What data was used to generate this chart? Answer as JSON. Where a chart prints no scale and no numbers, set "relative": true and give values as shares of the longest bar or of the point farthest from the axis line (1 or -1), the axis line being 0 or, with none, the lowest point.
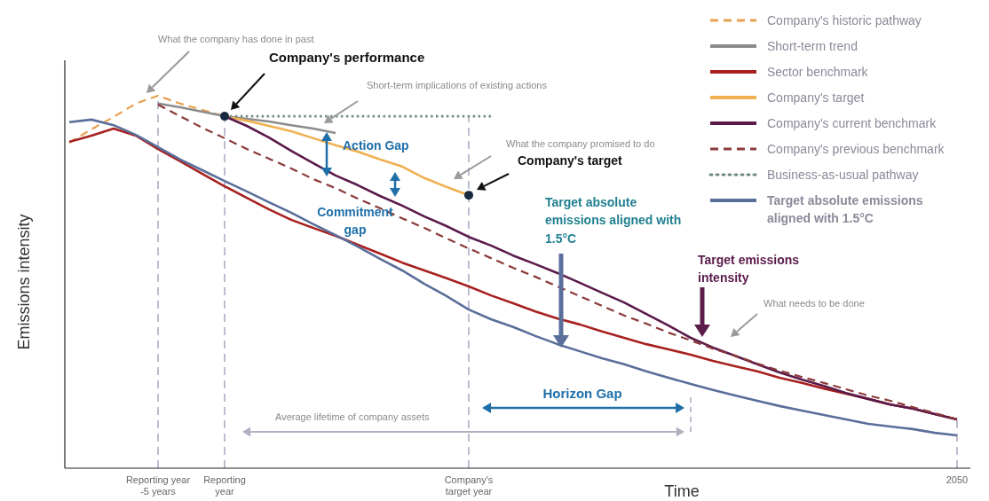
{
  "chart_data": {
    "type": "line",
    "relative": true,
    "xlabel": "Time",
    "ylabel": "Emissions intensity",
    "categories": [
      null,
      null,
      null,
      null,
      "Reporting year -5 years",
      null,
      null,
      "Reporting year",
      null,
      null,
      null,
      null,
      null,
      null,
      null,
      null,
      null,
      null,
      "Company's target year",
      null,
      null,
      null,
      null,
      null,
      null,
      null,
      null,
      null,
      null,
      null,
      null,
      null,
      null,
      null,
      null,
      null,
      null,
      null,
      null,
      null,
      "2050"
    ],
    "tick_labels": "x",
    "legend": "top right",
    "marker": "none",
    "series": [
      {
        "name": "Company's historic pathway",
        "color": "#e8a050",
        "line_style": "dashed",
        "values": [
          0.874,
          0.91,
          0.943,
          0.979,
          1,
          0.979,
          0.962,
          0.945,
          null,
          null,
          null,
          null,
          null,
          null,
          null,
          null,
          null,
          null,
          null,
          null,
          null,
          null,
          null,
          null,
          null,
          null,
          null,
          null,
          null,
          null,
          null,
          null,
          null,
          null,
          null,
          null,
          null,
          null,
          null,
          null,
          null
        ]
      },
      {
        "name": "Short-term trend",
        "color": "#8c8c8c",
        "line_style": "solid",
        "values": [
          null,
          null,
          null,
          null,
          0.979,
          0.969,
          0.957,
          0.945,
          0.938,
          0.931,
          0.921,
          0.912,
          0.9,
          null,
          null,
          null,
          null,
          null,
          null,
          null,
          null,
          null,
          null,
          null,
          null,
          null,
          null,
          null,
          null,
          null,
          null,
          null,
          null,
          null,
          null,
          null,
          null,
          null,
          null,
          null,
          null
        ]
      },
      {
        "name": "Sector benchmark",
        "color": "#a82020",
        "line_style": "solid",
        "values": [
          0.876,
          0.893,
          0.912,
          0.893,
          0.857,
          0.824,
          0.79,
          0.757,
          0.726,
          0.695,
          0.667,
          0.645,
          0.624,
          0.6,
          0.576,
          0.552,
          0.531,
          0.51,
          0.488,
          0.464,
          0.443,
          0.421,
          0.402,
          0.386,
          0.367,
          0.35,
          0.333,
          0.319,
          0.305,
          0.288,
          0.274,
          0.26,
          0.243,
          0.229,
          0.214,
          0.2,
          0.186,
          0.171,
          0.16,
          0.145,
          0.131
        ]
      },
      {
        "name": "Company's target",
        "color": "#f0b050",
        "line_style": "solid",
        "values": [
          null,
          null,
          null,
          null,
          null,
          null,
          null,
          0.945,
          0.933,
          0.919,
          0.905,
          0.886,
          0.867,
          0.85,
          0.829,
          0.81,
          0.779,
          0.755,
          0.733,
          null,
          null,
          null,
          null,
          null,
          null,
          null,
          null,
          null,
          null,
          null,
          null,
          null,
          null,
          null,
          null,
          null,
          null,
          null,
          null,
          null,
          null
        ]
      },
      {
        "name": "Company's current benchmark",
        "color": "#5a1a4a",
        "line_style": "solid",
        "values": [
          null,
          null,
          null,
          null,
          null,
          null,
          null,
          0.945,
          0.919,
          0.888,
          0.852,
          0.819,
          0.786,
          0.76,
          0.731,
          0.705,
          0.676,
          0.65,
          0.621,
          0.598,
          0.571,
          0.548,
          0.524,
          0.498,
          0.471,
          0.445,
          0.414,
          0.383,
          0.35,
          0.324,
          0.302,
          0.279,
          0.257,
          0.238,
          0.221,
          0.202,
          0.186,
          0.171,
          0.16,
          0.145,
          0.131
        ]
      },
      {
        "name": "Company's previous benchmark",
        "color": "#8b3a3a",
        "line_style": "dashed",
        "values": [
          null,
          null,
          null,
          null,
          0.976,
          0.945,
          0.914,
          0.886,
          0.857,
          0.831,
          0.805,
          0.776,
          0.752,
          0.724,
          0.698,
          0.671,
          0.645,
          0.617,
          0.59,
          0.564,
          0.538,
          0.514,
          0.488,
          0.462,
          0.436,
          0.41,
          0.388,
          0.364,
          0.343,
          0.321,
          0.302,
          0.281,
          0.262,
          0.245,
          0.229,
          0.212,
          0.195,
          0.181,
          0.164,
          0.148,
          0.131
        ]
      },
      {
        "name": "Business-as-usual pathway",
        "color": "#6f8a80",
        "line_style": "dotted",
        "values": [
          null,
          null,
          null,
          null,
          null,
          null,
          null,
          0.945,
          0.945,
          0.945,
          0.945,
          0.945,
          0.945,
          0.945,
          0.945,
          0.945,
          0.945,
          0.945,
          0.945,
          0.945,
          null,
          null,
          null,
          null,
          null,
          null,
          null,
          null,
          null,
          null,
          null,
          null,
          null,
          null,
          null,
          null,
          null,
          null,
          null,
          null,
          null
        ]
      },
      {
        "name": "Target absolute emissions aligned with 1.5°C",
        "color": "#5a6e9a",
        "line_style": "solid",
        "values": [
          0.929,
          0.936,
          0.921,
          0.895,
          0.862,
          0.829,
          0.8,
          0.771,
          0.743,
          0.714,
          0.686,
          0.655,
          0.626,
          0.595,
          0.562,
          0.531,
          0.495,
          0.462,
          0.426,
          0.4,
          0.379,
          0.355,
          0.333,
          0.314,
          0.295,
          0.279,
          0.26,
          0.243,
          0.226,
          0.21,
          0.195,
          0.181,
          0.167,
          0.155,
          0.143,
          0.131,
          0.119,
          0.112,
          0.105,
          0.095,
          0.088
        ]
      },
      {
        "type": "scatter",
        "color": "#1a2a40",
        "marker": "circle",
        "values": [
          null,
          null,
          null,
          null,
          null,
          null,
          null,
          0.945,
          null,
          null,
          null,
          null,
          null,
          null,
          null,
          null,
          null,
          null,
          0.733,
          null,
          null,
          null,
          null,
          null,
          null,
          null,
          null,
          null,
          null,
          null,
          null,
          null,
          null,
          null,
          null,
          null,
          null,
          null,
          null,
          null,
          null
        ]
      }
    ],
    "ref_lines": [
      {
        "axis": "x",
        "value": "Reporting year -5 years",
        "color": "#a8a8c4",
        "line_style": "dashed"
      },
      {
        "axis": "x",
        "value": "Reporting year",
        "color": "#a8a8c4",
        "line_style": "dashed"
      },
      {
        "axis": "x",
        "value": "Company's target year",
        "color": "#a8a8c4",
        "line_style": "dashed"
      },
      {
        "axis": "x",
        "value": "2050",
        "color": "#a8a8c4",
        "line_style": "dashed"
      }
    ],
    "annotations": [
      "What the company has done in past",
      "Company's performance",
      "Short-term implications of existing actions",
      "Action Gap",
      "Commitment gap",
      "What the company promised to do",
      "Company's target",
      "Target absolute emissions aligned with 1.5°C",
      "Target emissions intensity",
      "What needs to be done",
      "Horizon Gap",
      "Average lifetime of company assets"
    ]
  }
}
